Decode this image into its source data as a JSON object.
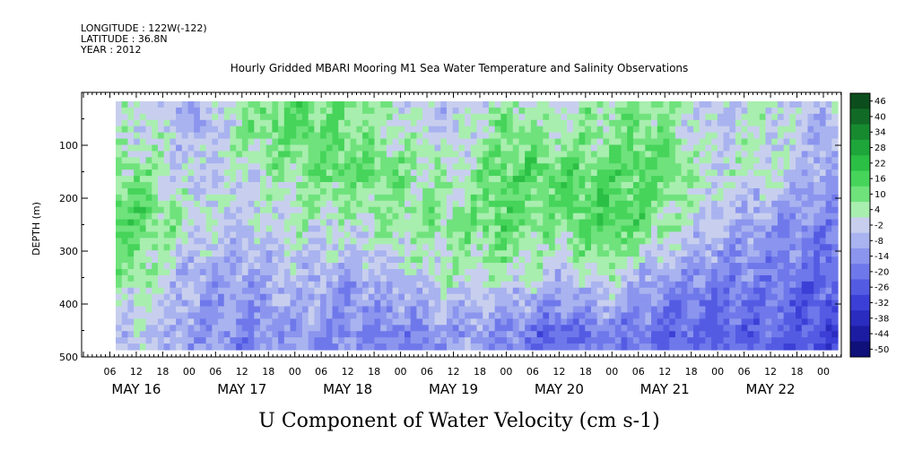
{
  "meta": {
    "longitude": "LONGITUDE : 122W(-122)",
    "latitude": "LATITUDE : 36.8N",
    "year": "YEAR : 2012"
  },
  "chart_data": {
    "type": "heatmap",
    "title": "Hourly Gridded MBARI Mooring M1 Sea Water Temperature and Salinity Observations",
    "xlabel": "U Component of Water Velocity (cm s-1)",
    "ylabel": "DEPTH (m)",
    "ylim": [
      500,
      0
    ],
    "y_ticks": [
      100,
      200,
      300,
      400,
      500
    ],
    "x_hour_ticks": [
      "06",
      "12",
      "18",
      "00",
      "06",
      "12",
      "18",
      "00",
      "06",
      "12",
      "18",
      "00",
      "06",
      "12",
      "18",
      "00",
      "06",
      "12",
      "18",
      "00",
      "06",
      "12",
      "18",
      "00",
      "06",
      "12",
      "18",
      "00",
      "06",
      "12",
      "18",
      "00"
    ],
    "x_day_labels": [
      "MAY 16",
      "MAY 17",
      "MAY 18",
      "MAY 19",
      "MAY 20",
      "MAY 21",
      "MAY 22"
    ],
    "colorbar": {
      "levels": [
        "46",
        "40",
        "34",
        "28",
        "22",
        "16",
        "10",
        "4",
        "-2",
        "-8",
        "-14",
        "-20",
        "-26",
        "-32",
        "-38",
        "-44",
        "-50"
      ],
      "colors": [
        "#0b4d1c",
        "#116a26",
        "#178a30",
        "#1ea63a",
        "#2bbf45",
        "#46d45a",
        "#6fe27c",
        "#a8eeae",
        "#c8cfee",
        "#a9b3ef",
        "#8b95ee",
        "#6f78ea",
        "#545be3",
        "#3b3fd6",
        "#2a2cc0",
        "#1c1ca3",
        "#10107a"
      ]
    },
    "profiles": {
      "note": "approximate U velocity (cm s-1) per day-segment across depth bands top→bottom",
      "depth_bands_m": [
        50,
        150,
        250,
        350,
        450
      ],
      "segments": [
        {
          "label": "MAY 16 00-12",
          "values": [
            4,
            10,
            16,
            8,
            -2
          ]
        },
        {
          "label": "MAY 16 12-24",
          "values": [
            -8,
            -2,
            4,
            -8,
            -8
          ]
        },
        {
          "label": "MAY 17 00-12",
          "values": [
            10,
            4,
            -2,
            -8,
            -14
          ]
        },
        {
          "label": "MAY 17 12-24",
          "values": [
            16,
            10,
            4,
            -2,
            -8
          ]
        },
        {
          "label": "MAY 18 00-12",
          "values": [
            10,
            16,
            4,
            -8,
            -14
          ]
        },
        {
          "label": "MAY 18 12-24",
          "values": [
            4,
            10,
            10,
            -2,
            -14
          ]
        },
        {
          "label": "MAY 19 00-12",
          "values": [
            -2,
            4,
            10,
            4,
            -8
          ]
        },
        {
          "label": "MAY 19 12-24",
          "values": [
            10,
            16,
            16,
            4,
            -14
          ]
        },
        {
          "label": "MAY 20 00-12",
          "values": [
            4,
            16,
            10,
            -2,
            -20
          ]
        },
        {
          "label": "MAY 20 12-24",
          "values": [
            10,
            16,
            22,
            4,
            -14
          ]
        },
        {
          "label": "MAY 21 00-12",
          "values": [
            10,
            16,
            10,
            -8,
            -20
          ]
        },
        {
          "label": "MAY 21 12-24",
          "values": [
            -2,
            4,
            -2,
            -14,
            -20
          ]
        },
        {
          "label": "MAY 22 00-12",
          "values": [
            4,
            4,
            -8,
            -14,
            -20
          ]
        },
        {
          "label": "MAY 22 12-24",
          "values": [
            -2,
            -8,
            -14,
            -20,
            -26
          ]
        }
      ]
    }
  }
}
